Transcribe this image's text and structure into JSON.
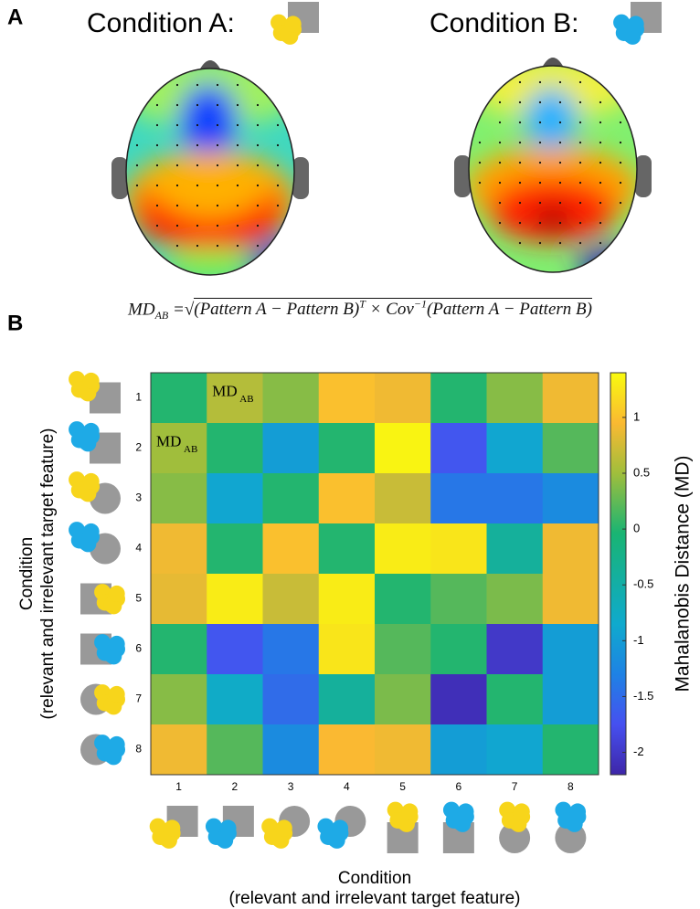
{
  "panel_labels": [
    "A",
    "B"
  ],
  "conditions": [
    "Condition A:",
    "Condition B:"
  ],
  "formula": {
    "lhs": "MD",
    "lhs_sub": "AB",
    "eq": "=",
    "part1": "(Pattern A − Pattern B)",
    "sup1": "T",
    "part2": " × Cov",
    "sup2": "−1",
    "part3": "(Pattern A − Pattern B)"
  },
  "chart_data": {
    "type": "heatmap",
    "x_categories": [
      "1",
      "2",
      "3",
      "4",
      "5",
      "6",
      "7",
      "8"
    ],
    "y_categories": [
      "1",
      "2",
      "3",
      "4",
      "5",
      "6",
      "7",
      "8"
    ],
    "values": [
      [
        0.0,
        0.6,
        0.4,
        1.0,
        0.9,
        0.0,
        0.4,
        0.9
      ],
      [
        0.5,
        0.0,
        -1.0,
        0.0,
        1.35,
        -1.7,
        -0.9,
        0.2
      ],
      [
        0.4,
        -0.9,
        0.0,
        1.0,
        0.7,
        -1.4,
        -1.4,
        -1.2
      ],
      [
        0.9,
        0.0,
        1.0,
        0.0,
        1.3,
        1.25,
        -0.4,
        0.9
      ],
      [
        0.85,
        1.3,
        0.7,
        1.3,
        0.0,
        0.2,
        0.35,
        0.9
      ],
      [
        0.0,
        -1.7,
        -1.4,
        1.25,
        0.2,
        0.0,
        -2.0,
        -1.0
      ],
      [
        0.4,
        -0.8,
        -1.5,
        -0.4,
        0.35,
        -2.1,
        0.0,
        -1.0
      ],
      [
        0.9,
        0.2,
        -1.2,
        0.95,
        0.9,
        -1.0,
        -0.9,
        0.0
      ]
    ],
    "annotations": [
      {
        "text": "MD",
        "sub": "AB"
      },
      {
        "text": "MD",
        "sub": "AB"
      }
    ],
    "colormap": "parula",
    "clim": [
      -2.2,
      1.4
    ],
    "cticks": [
      -2,
      -1.5,
      -1,
      -0.5,
      0,
      0.5,
      1
    ],
    "colorbar_label": "Mahalanobis Distance (MD)",
    "xlabel": [
      "Condition",
      "(relevant and irrelevant target feature)"
    ],
    "ylabel": [
      "Condition",
      "(relevant and irrelevant target feature)"
    ]
  }
}
